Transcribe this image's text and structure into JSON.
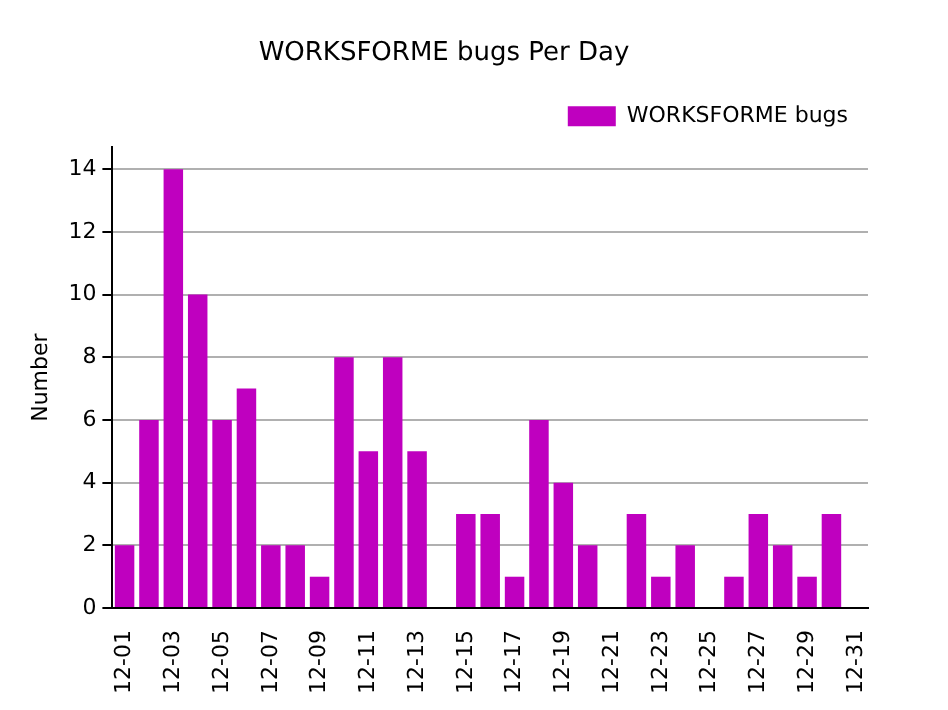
{
  "chart_data": {
    "type": "bar",
    "title": "WORKSFORME bugs Per Day",
    "ylabel": "Number",
    "categories": [
      "12-01",
      null,
      "12-03",
      null,
      "12-05",
      null,
      "12-07",
      null,
      "12-09",
      null,
      "12-11",
      null,
      "12-13",
      null,
      "12-15",
      null,
      "12-17",
      null,
      "12-19",
      null,
      "12-21",
      null,
      "12-23",
      null,
      "12-25",
      null,
      "12-27",
      null,
      "12-29",
      null,
      "12-31"
    ],
    "series": [
      {
        "name": "WORKSFORME bugs",
        "color": "#bf00bf",
        "values": [
          2,
          6,
          14,
          10,
          6,
          7,
          2,
          2,
          1,
          8,
          5,
          8,
          5,
          0,
          3,
          3,
          1,
          6,
          4,
          2,
          0,
          3,
          1,
          2,
          0,
          1,
          3,
          2,
          1,
          3,
          0
        ]
      }
    ],
    "ylim": [
      0,
      14.7
    ],
    "yticks": [
      0,
      2,
      4,
      6,
      8,
      10,
      12,
      14
    ],
    "grid": "y",
    "legend": "top right"
  }
}
